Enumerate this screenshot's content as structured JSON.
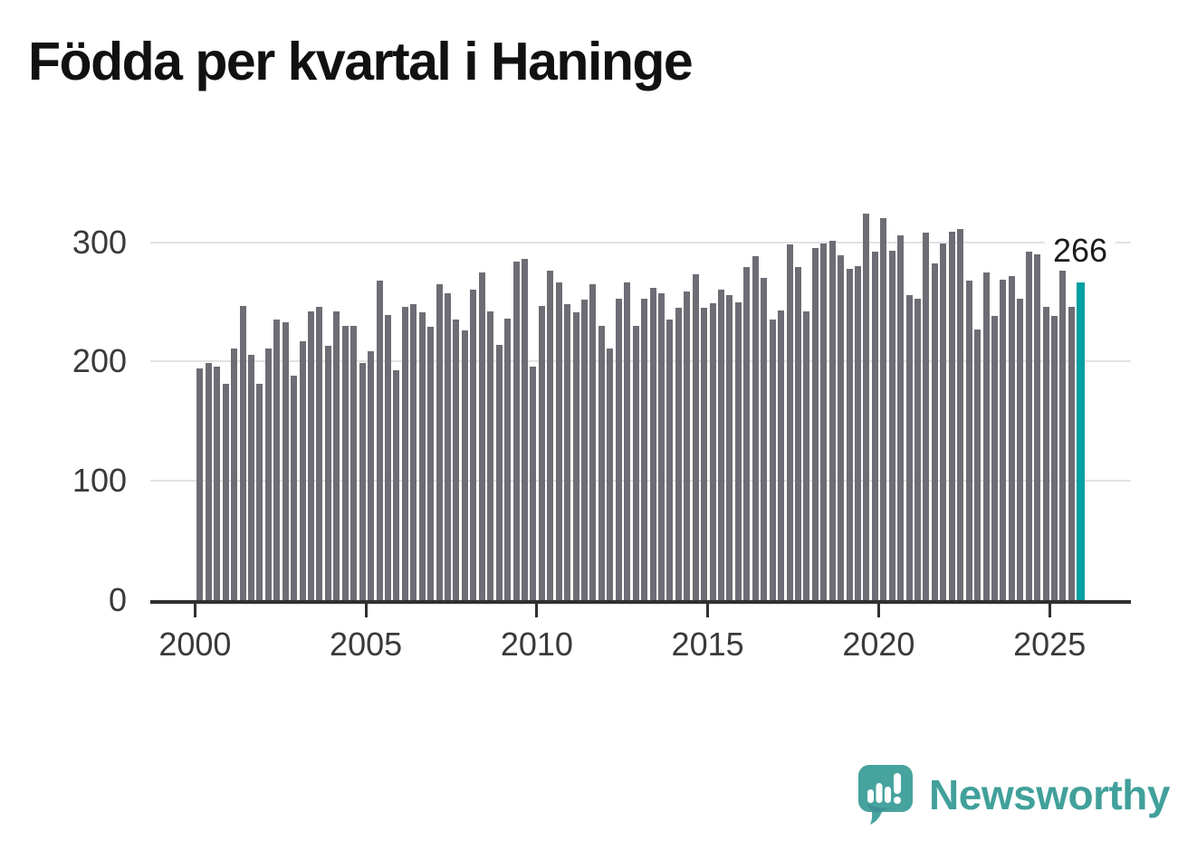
{
  "title": "Födda per kvartal i Haninge",
  "chart_data": {
    "type": "bar",
    "title": "Födda per kvartal i Haninge",
    "x_unit": "quarter",
    "start": "2000-Q1",
    "end": "2025-Q4",
    "values": [
      194,
      199,
      196,
      181,
      211,
      247,
      206,
      181,
      211,
      235,
      233,
      188,
      217,
      242,
      246,
      213,
      242,
      230,
      230,
      199,
      209,
      268,
      239,
      193,
      246,
      248,
      241,
      229,
      265,
      257,
      235,
      226,
      260,
      275,
      242,
      214,
      236,
      284,
      286,
      196,
      247,
      276,
      266,
      248,
      241,
      252,
      265,
      230,
      211,
      253,
      266,
      230,
      253,
      262,
      257,
      235,
      245,
      259,
      273,
      245,
      249,
      260,
      256,
      250,
      279,
      288,
      270,
      235,
      243,
      298,
      279,
      242,
      295,
      299,
      301,
      289,
      278,
      280,
      324,
      292,
      320,
      293,
      306,
      256,
      253,
      308,
      282,
      299,
      309,
      311,
      268,
      227,
      275,
      238,
      269,
      272,
      253,
      292,
      290,
      246,
      238,
      276,
      246,
      266
    ],
    "highlight_last": {
      "value": 266,
      "label": "266"
    },
    "y_ticks": [
      "0",
      "100",
      "200",
      "300"
    ],
    "x_ticks": [
      "2000",
      "2005",
      "2010",
      "2015",
      "2020",
      "2025"
    ],
    "ylim": [
      0,
      340
    ],
    "grid": "horizontal",
    "legend": "none"
  },
  "annotation_label": "266",
  "branding": {
    "wordmark": "Newsworthy"
  },
  "colors": {
    "bar": "#6d6d75",
    "highlight": "#00a0a3",
    "grid": "#e2e2e2",
    "axis": "#303030",
    "axis_text": "#3a3a3a",
    "title_text": "#111111",
    "brand_teal": "#47a39e",
    "annotation_text": "#1c1c1c"
  }
}
